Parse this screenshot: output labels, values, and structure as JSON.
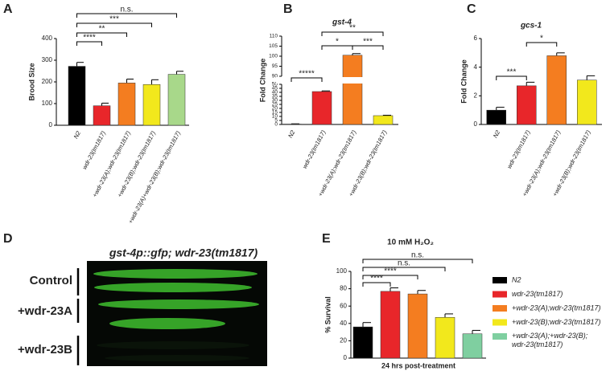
{
  "chart_data": [
    {
      "type": "bar",
      "panel_label": "A",
      "y_label": "Brood Size",
      "categories": [
        "N2",
        "wdr-23(tm1817)",
        "+wdr-23(A);wdr-23(tm1817)",
        "+wdr-23(B);wdr-23(tm1817)",
        "+wdr-23(A)+wdr-23(B);wdr-23(tm1817)"
      ],
      "values": [
        272,
        90,
        195,
        188,
        235
      ],
      "errors": [
        18,
        12,
        18,
        22,
        14
      ],
      "colors": [
        "#000000",
        "#e8262a",
        "#f47d20",
        "#f2e81c",
        "#a8d88a"
      ],
      "ylim": [
        0,
        400
      ],
      "yticks": [
        0,
        100,
        200,
        300,
        400
      ],
      "annotations": [
        {
          "label": "n.s.",
          "from": 0,
          "to": 4
        },
        {
          "label": "***",
          "from": 0,
          "to": 3
        },
        {
          "label": "**",
          "from": 0,
          "to": 2
        },
        {
          "label": "****",
          "from": 0,
          "to": 1
        }
      ]
    },
    {
      "type": "bar",
      "panel_label": "B",
      "title": "gst-4",
      "y_label": "Fold  Change",
      "categories": [
        "N2",
        "wdr-23(tm1817)",
        "+wdr-23(A);wdr-23(tm1817)",
        "+wdr-23(B);wdr-23(tm1817)"
      ],
      "values": [
        0.5,
        41,
        100.5,
        11
      ],
      "errors": [
        0.3,
        0.8,
        0.8,
        0.5
      ],
      "colors": [
        "#000000",
        "#e8262a",
        "#f47d20",
        "#f2e81c"
      ],
      "ylim": [
        0,
        110
      ],
      "axis_break": [
        50,
        90
      ],
      "yticks": [
        0,
        5,
        10,
        15,
        20,
        25,
        30,
        35,
        40,
        45,
        50,
        90,
        95,
        100,
        105,
        110
      ],
      "annotations": [
        {
          "label": "*****",
          "from": 0,
          "to": 1
        },
        {
          "label": "*",
          "from": 1,
          "to": 2
        },
        {
          "label": "***",
          "from": 2,
          "to": 3
        },
        {
          "label": "**",
          "from": 1,
          "to": 3
        }
      ]
    },
    {
      "type": "bar",
      "panel_label": "C",
      "title": "gcs-1",
      "y_label": "Fold  Change",
      "categories": [
        "N2",
        "wdr-23(tm1817)",
        "+wdr-23(A);wdr-23(tm1817)",
        "+wdr-23(B);wdr-23(tm1817)"
      ],
      "values": [
        1.0,
        2.7,
        4.8,
        3.1
      ],
      "errors": [
        0.2,
        0.25,
        0.2,
        0.3
      ],
      "colors": [
        "#000000",
        "#e8262a",
        "#f47d20",
        "#f2e81c"
      ],
      "ylim": [
        0,
        6
      ],
      "yticks": [
        0,
        2,
        4,
        6
      ],
      "annotations": [
        {
          "label": "***",
          "from": 0,
          "to": 1
        },
        {
          "label": "*",
          "from": 1,
          "to": 2
        }
      ]
    },
    {
      "type": "grouped",
      "panel_label": "E",
      "title": "10 mM H₂O₂",
      "y_label": "% Survival",
      "x_label": "24 hrs post-treatment",
      "series": [
        {
          "name": "N2",
          "color": "#000000",
          "values": [
            36
          ],
          "errors": [
            5
          ]
        },
        {
          "name": "wdr-23(tm1817)",
          "color": "#e8262a",
          "values": [
            77
          ],
          "errors": [
            4
          ]
        },
        {
          "name": "+wdr-23(A);wdr-23(tm1817)",
          "color": "#f47d20",
          "values": [
            74
          ],
          "errors": [
            4
          ]
        },
        {
          "name": "+wdr-23(B);wdr-23(tm1817)",
          "color": "#f2e81c",
          "values": [
            47
          ],
          "errors": [
            4
          ]
        },
        {
          "name": "+wdr-23(A);+wdr-23(B);\nwdr-23(tm1817)",
          "color": "#7fcfa0",
          "values": [
            28
          ],
          "errors": [
            4
          ]
        }
      ],
      "ylim": [
        0,
        100
      ],
      "yticks": [
        0,
        20,
        40,
        60,
        80,
        100
      ],
      "annotations": [
        {
          "label": "n.s.",
          "from": 0,
          "to": 4
        },
        {
          "label": "n.s.",
          "from": 0,
          "to": 3
        },
        {
          "label": "****",
          "from": 0,
          "to": 2
        },
        {
          "label": "****",
          "from": 0,
          "to": 1
        }
      ]
    }
  ],
  "image_panel": {
    "panel_label": "D",
    "title": "gst-4p::gfp; wdr-23(tm1817)",
    "rows": [
      "Control",
      "+wdr-23A",
      "+wdr-23B"
    ]
  }
}
